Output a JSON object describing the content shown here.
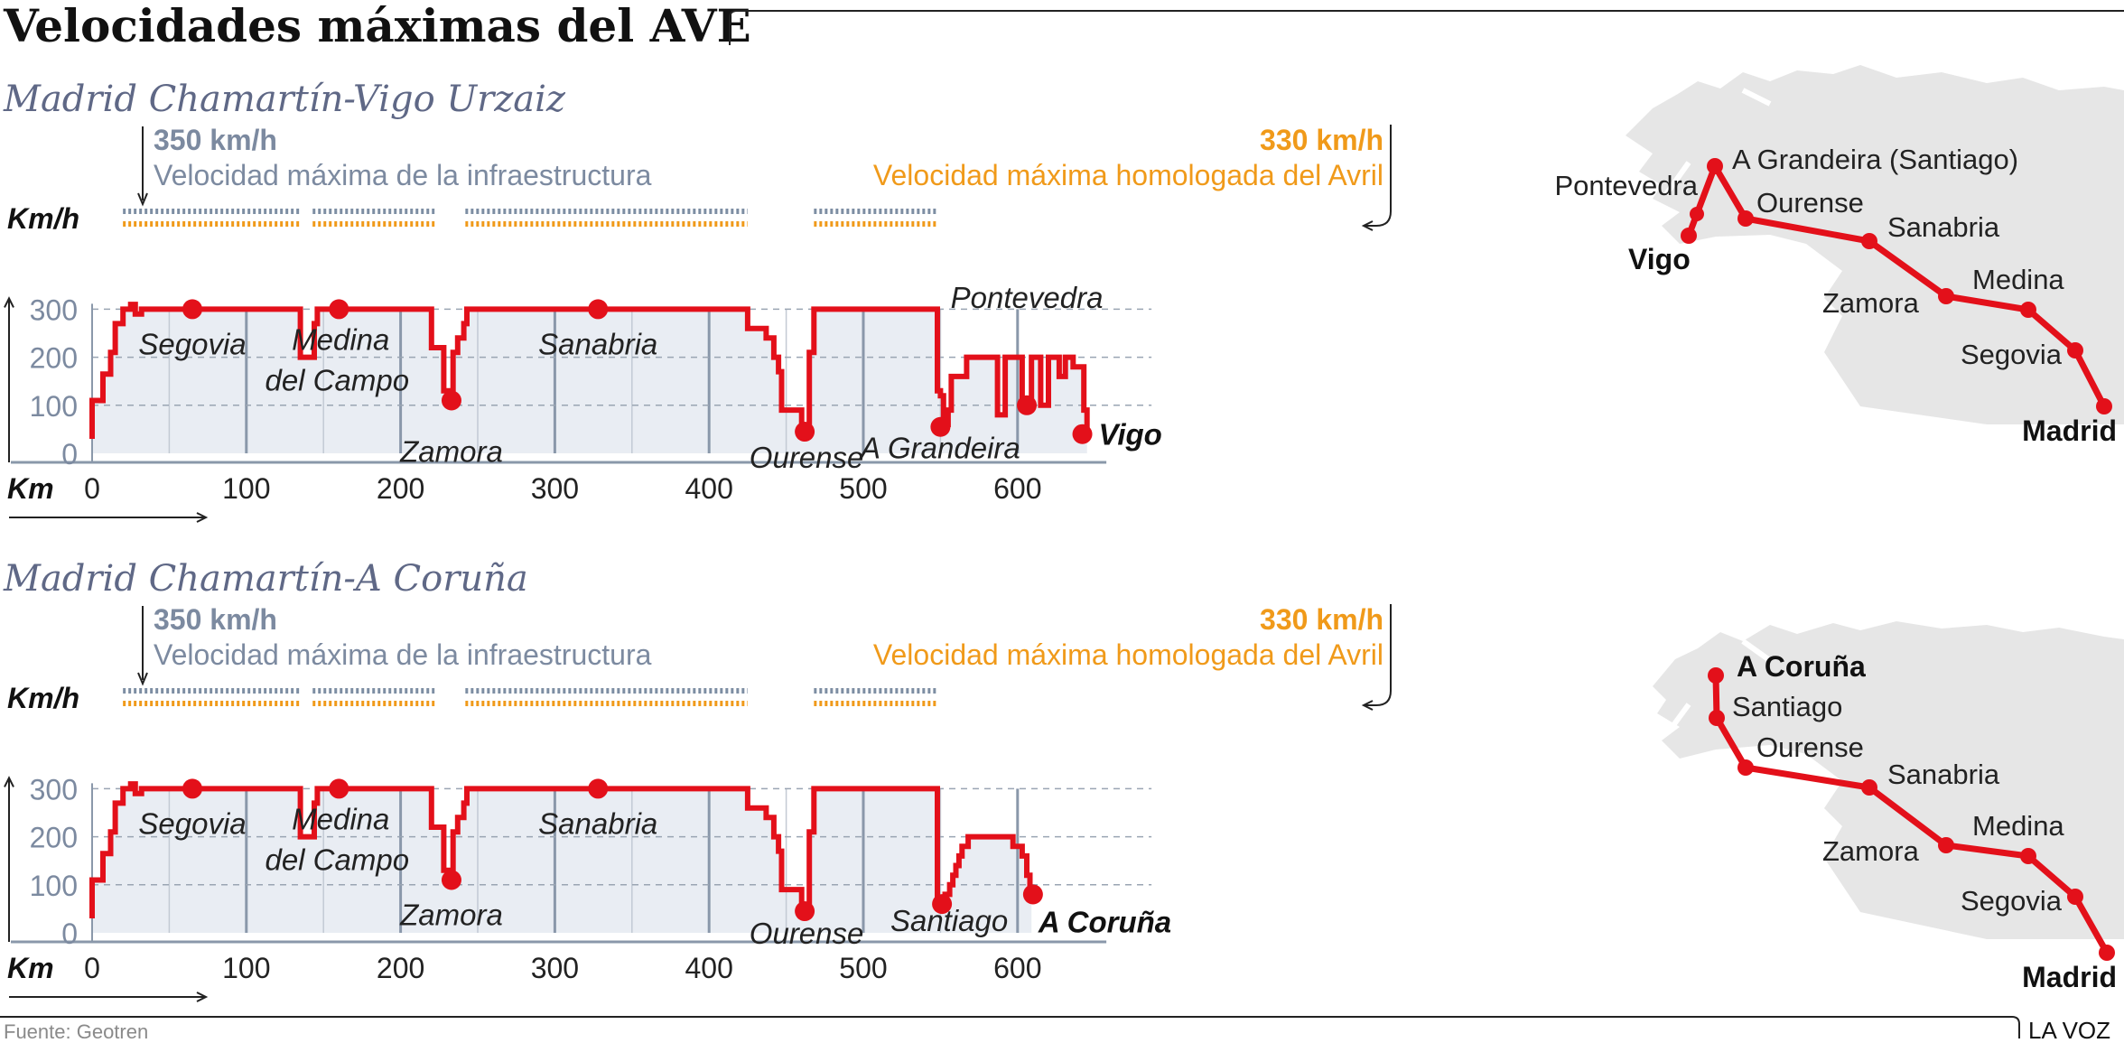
{
  "title": "Velocidades máximas del AVE",
  "source": "Fuente: Geotren",
  "brand": "LA VOZ",
  "colors": {
    "line": "#e3101a",
    "gray_text": "#7c8aa0",
    "orange": "#f09a1a",
    "blue_dash": "#7d8ea3",
    "subtitle": "#5f6886",
    "area": "#e9edf3",
    "grid": "#8a98aa",
    "map_land": "#e6e6e6"
  },
  "chart_data": [
    {
      "type": "line",
      "title": "Madrid Chamartín-Vigo Urzaiz",
      "xlabel": "Km",
      "ylabel": "Km/h",
      "xlim": [
        0,
        640
      ],
      "ylim": [
        0,
        300
      ],
      "x_ticks": [
        0,
        100,
        200,
        300,
        400,
        500,
        600
      ],
      "y_ticks": [
        0,
        100,
        200,
        300
      ],
      "annotation_left": {
        "value": "350 km/h",
        "text": "Velocidad máxima de la infraestructura"
      },
      "annotation_right": {
        "value": "330 km/h",
        "text": "Velocidad máxima homologada del Avril"
      },
      "high_speed_segments": [
        [
          20,
          135
        ],
        [
          143,
          222
        ],
        [
          242,
          425
        ],
        [
          468,
          548
        ]
      ],
      "profile": [
        [
          0,
          30
        ],
        [
          0,
          110
        ],
        [
          7,
          110
        ],
        [
          7,
          165
        ],
        [
          12,
          165
        ],
        [
          12,
          210
        ],
        [
          15,
          210
        ],
        [
          15,
          270
        ],
        [
          20,
          270
        ],
        [
          20,
          300
        ],
        [
          25,
          300
        ],
        [
          25,
          310
        ],
        [
          28,
          310
        ],
        [
          28,
          290
        ],
        [
          32,
          290
        ],
        [
          32,
          300
        ],
        [
          135,
          300
        ],
        [
          135,
          200
        ],
        [
          144,
          200
        ],
        [
          144,
          270
        ],
        [
          146,
          270
        ],
        [
          146,
          300
        ],
        [
          220,
          300
        ],
        [
          220,
          220
        ],
        [
          228,
          220
        ],
        [
          228,
          130
        ],
        [
          232,
          130
        ],
        [
          232,
          110
        ],
        [
          234,
          110
        ],
        [
          234,
          210
        ],
        [
          237,
          210
        ],
        [
          237,
          240
        ],
        [
          241,
          240
        ],
        [
          241,
          270
        ],
        [
          243,
          270
        ],
        [
          243,
          300
        ],
        [
          425,
          300
        ],
        [
          425,
          260
        ],
        [
          437,
          260
        ],
        [
          437,
          240
        ],
        [
          442,
          240
        ],
        [
          442,
          200
        ],
        [
          445,
          200
        ],
        [
          445,
          170
        ],
        [
          447,
          170
        ],
        [
          447,
          90
        ],
        [
          460,
          90
        ],
        [
          460,
          50
        ],
        [
          465,
          50
        ],
        [
          465,
          210
        ],
        [
          468,
          210
        ],
        [
          468,
          300
        ],
        [
          548,
          300
        ],
        [
          548,
          130
        ],
        [
          550,
          130
        ],
        [
          550,
          120
        ],
        [
          552,
          120
        ],
        [
          552,
          60
        ],
        [
          555,
          60
        ],
        [
          555,
          90
        ],
        [
          557,
          90
        ],
        [
          557,
          160
        ],
        [
          567,
          160
        ],
        [
          567,
          200
        ],
        [
          587,
          200
        ],
        [
          587,
          80
        ],
        [
          592,
          80
        ],
        [
          592,
          200
        ],
        [
          603,
          200
        ],
        [
          603,
          100
        ],
        [
          609,
          100
        ],
        [
          609,
          200
        ],
        [
          615,
          200
        ],
        [
          615,
          100
        ],
        [
          620,
          100
        ],
        [
          620,
          200
        ],
        [
          627,
          200
        ],
        [
          627,
          160
        ],
        [
          631,
          160
        ],
        [
          631,
          200
        ],
        [
          636,
          200
        ],
        [
          636,
          180
        ],
        [
          643,
          180
        ],
        [
          643,
          90
        ],
        [
          645,
          90
        ],
        [
          645,
          40
        ]
      ],
      "stations": [
        {
          "name": "Segovia",
          "km": 65,
          "speed": 300
        },
        {
          "name": "Medina del Campo",
          "km": 160,
          "speed": 300
        },
        {
          "name": "Zamora",
          "km": 233,
          "speed": 110
        },
        {
          "name": "Sanabria",
          "km": 328,
          "speed": 300
        },
        {
          "name": "Ourense",
          "km": 462,
          "speed": 45
        },
        {
          "name": "A Grandeira",
          "km": 550,
          "speed": 55
        },
        {
          "name": "Pontevedra",
          "km": 606,
          "speed": 100
        },
        {
          "name": "Vigo",
          "km": 642,
          "speed": 40
        }
      ]
    },
    {
      "type": "line",
      "title": "Madrid Chamartín-A Coruña",
      "xlabel": "Km",
      "ylabel": "Km/h",
      "xlim": [
        0,
        640
      ],
      "ylim": [
        0,
        300
      ],
      "x_ticks": [
        0,
        100,
        200,
        300,
        400,
        500,
        600
      ],
      "y_ticks": [
        0,
        100,
        200,
        300
      ],
      "annotation_left": {
        "value": "350 km/h",
        "text": "Velocidad máxima de la infraestructura"
      },
      "annotation_right": {
        "value": "330 km/h",
        "text": "Velocidad máxima homologada del Avril"
      },
      "high_speed_segments": [
        [
          20,
          135
        ],
        [
          143,
          222
        ],
        [
          242,
          425
        ],
        [
          468,
          548
        ]
      ],
      "profile": [
        [
          0,
          30
        ],
        [
          0,
          110
        ],
        [
          7,
          110
        ],
        [
          7,
          165
        ],
        [
          12,
          165
        ],
        [
          12,
          210
        ],
        [
          15,
          210
        ],
        [
          15,
          270
        ],
        [
          20,
          270
        ],
        [
          20,
          300
        ],
        [
          25,
          300
        ],
        [
          25,
          310
        ],
        [
          28,
          310
        ],
        [
          28,
          290
        ],
        [
          32,
          290
        ],
        [
          32,
          300
        ],
        [
          135,
          300
        ],
        [
          135,
          200
        ],
        [
          144,
          200
        ],
        [
          144,
          270
        ],
        [
          146,
          270
        ],
        [
          146,
          300
        ],
        [
          220,
          300
        ],
        [
          220,
          220
        ],
        [
          228,
          220
        ],
        [
          228,
          130
        ],
        [
          232,
          130
        ],
        [
          232,
          110
        ],
        [
          234,
          110
        ],
        [
          234,
          210
        ],
        [
          237,
          210
        ],
        [
          237,
          240
        ],
        [
          241,
          240
        ],
        [
          241,
          270
        ],
        [
          243,
          270
        ],
        [
          243,
          300
        ],
        [
          425,
          300
        ],
        [
          425,
          260
        ],
        [
          437,
          260
        ],
        [
          437,
          240
        ],
        [
          442,
          240
        ],
        [
          442,
          200
        ],
        [
          445,
          200
        ],
        [
          445,
          170
        ],
        [
          447,
          170
        ],
        [
          447,
          90
        ],
        [
          460,
          90
        ],
        [
          460,
          50
        ],
        [
          465,
          50
        ],
        [
          465,
          210
        ],
        [
          468,
          210
        ],
        [
          468,
          300
        ],
        [
          548,
          300
        ],
        [
          548,
          70
        ],
        [
          553,
          70
        ],
        [
          553,
          80
        ],
        [
          556,
          80
        ],
        [
          556,
          100
        ],
        [
          558,
          100
        ],
        [
          558,
          120
        ],
        [
          560,
          120
        ],
        [
          560,
          140
        ],
        [
          562,
          140
        ],
        [
          562,
          160
        ],
        [
          564,
          160
        ],
        [
          564,
          180
        ],
        [
          568,
          180
        ],
        [
          568,
          200
        ],
        [
          597,
          200
        ],
        [
          597,
          180
        ],
        [
          603,
          180
        ],
        [
          603,
          160
        ],
        [
          606,
          160
        ],
        [
          606,
          120
        ],
        [
          608,
          120
        ],
        [
          608,
          80
        ],
        [
          609,
          80
        ]
      ],
      "stations": [
        {
          "name": "Segovia",
          "km": 65,
          "speed": 300
        },
        {
          "name": "Medina del Campo",
          "km": 160,
          "speed": 300
        },
        {
          "name": "Zamora",
          "km": 233,
          "speed": 110
        },
        {
          "name": "Sanabria",
          "km": 328,
          "speed": 300
        },
        {
          "name": "Ourense",
          "km": 462,
          "speed": 45
        },
        {
          "name": "Santiago",
          "km": 551,
          "speed": 60
        },
        {
          "name": "A Coruña",
          "km": 610,
          "speed": 80
        }
      ]
    }
  ],
  "maps": [
    {
      "route": "Vigo",
      "stops": [
        "Madrid",
        "Segovia",
        "Medina",
        "Zamora",
        "Sanabria",
        "Ourense",
        "A Grandeira (Santiago)",
        "Pontevedra",
        "Vigo"
      ]
    },
    {
      "route": "A Coruña",
      "stops": [
        "Madrid",
        "Segovia",
        "Medina",
        "Zamora",
        "Sanabria",
        "Ourense",
        "Santiago",
        "A Coruña"
      ]
    }
  ]
}
